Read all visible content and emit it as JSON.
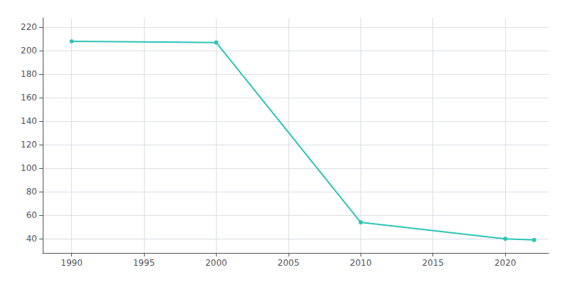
{
  "chart_data": {
    "type": "line",
    "x": [
      1990,
      2000,
      2010,
      2020,
      2022
    ],
    "values": [
      208,
      207,
      54,
      40,
      39
    ],
    "color": "#2EC4B6",
    "marker": "circle",
    "xlim": [
      1988,
      2023
    ],
    "ylim": [
      28,
      228
    ],
    "xticks": [
      1990,
      1995,
      2000,
      2005,
      2010,
      2015,
      2020
    ],
    "yticks": [
      40,
      60,
      80,
      100,
      120,
      140,
      160,
      180,
      200,
      220
    ],
    "grid": true
  }
}
